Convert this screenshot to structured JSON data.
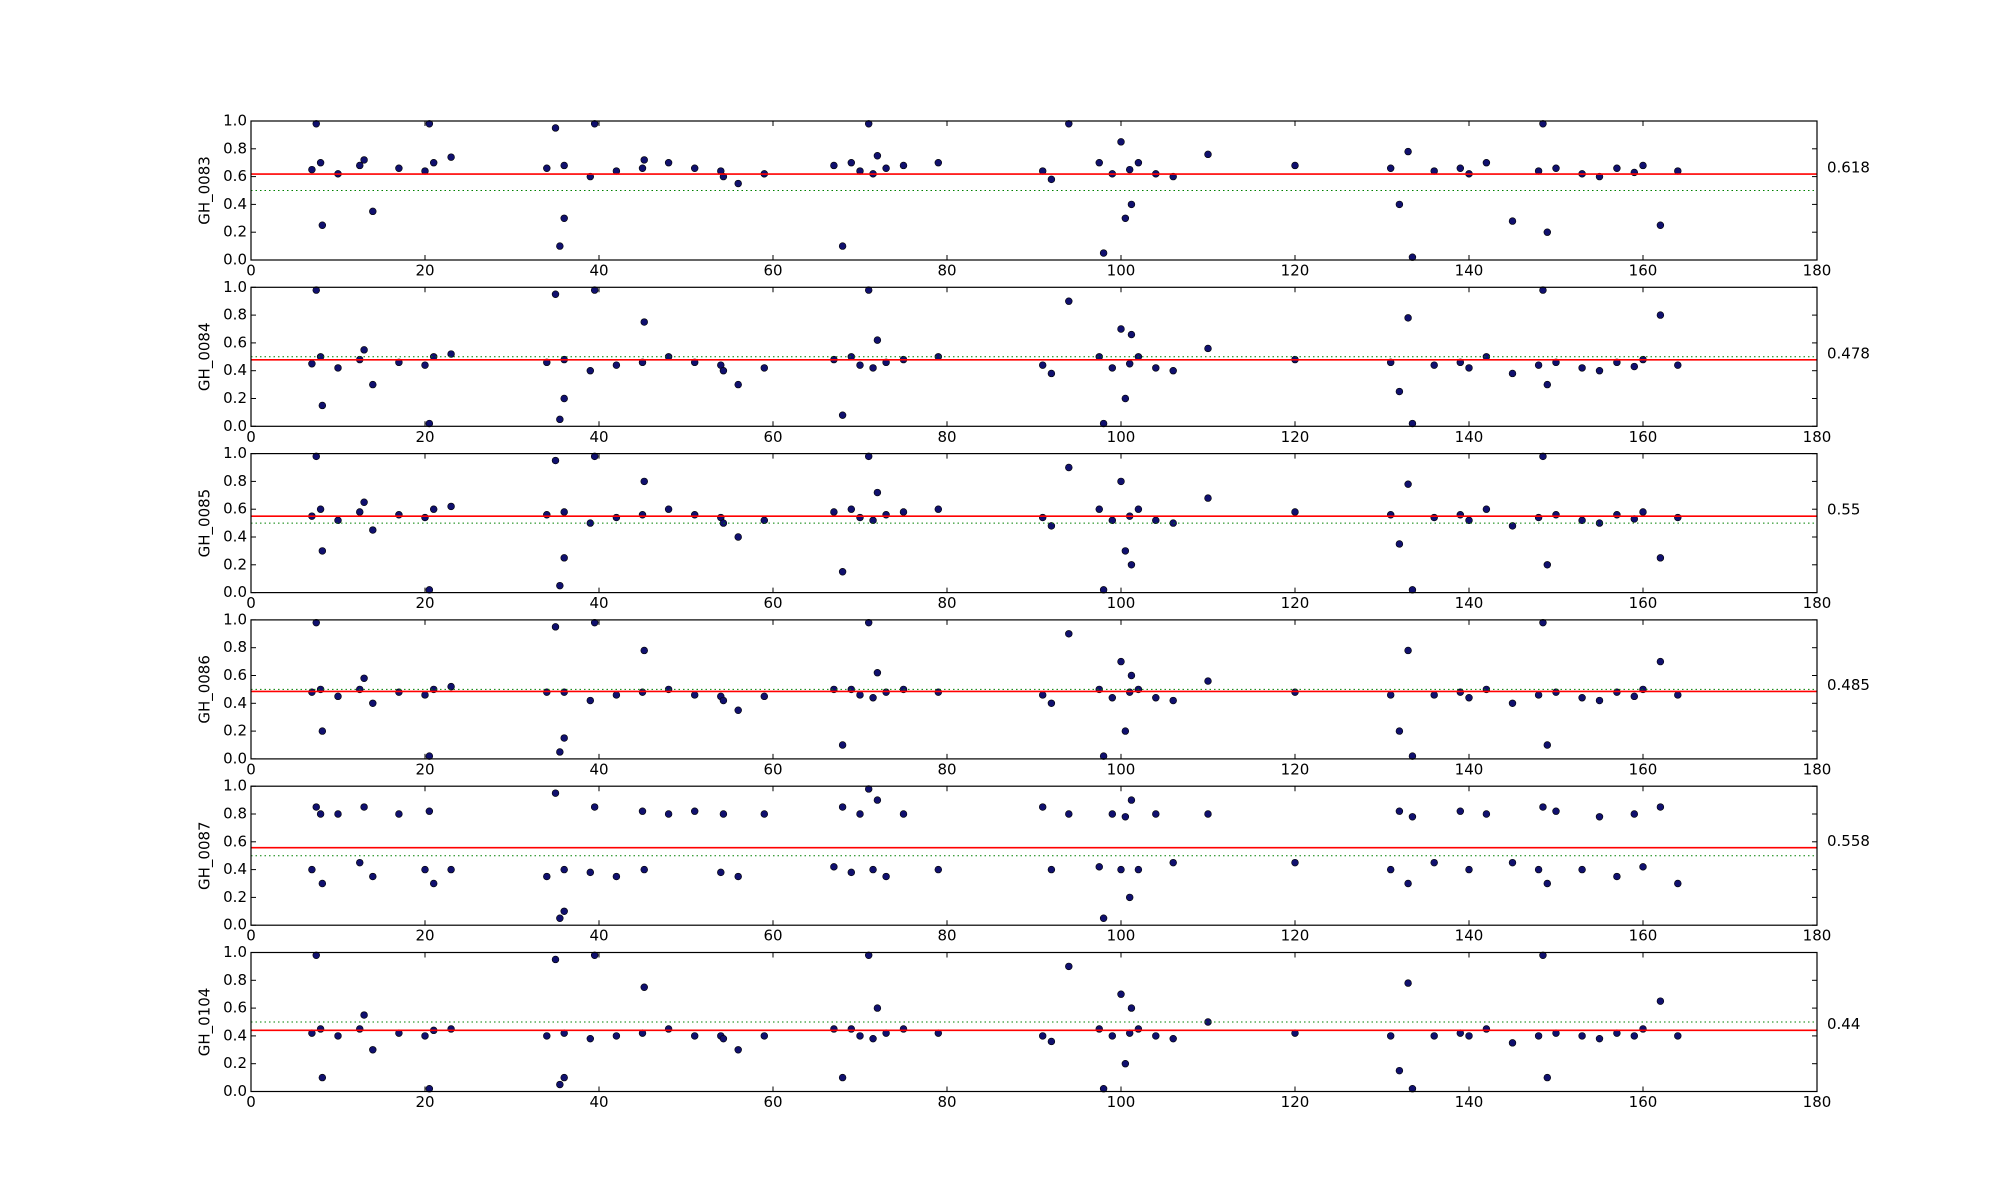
{
  "chart_data": [
    {
      "type": "scatter",
      "ylabel": "GH_0083",
      "color": "#10106e",
      "mean_line": 0.618,
      "mean_color": "#ff0000",
      "reference_line": 0.5,
      "reference_color": "#008000",
      "xlim": [
        0,
        180
      ],
      "ylim": [
        0,
        1
      ],
      "xticks": [
        0,
        20,
        40,
        60,
        80,
        100,
        120,
        140,
        160,
        180
      ],
      "yticks": [
        {
          "value": 0,
          "label": "0.0"
        },
        0.2,
        0.4,
        0.6,
        0.8,
        {
          "value": 1,
          "label": "1.0"
        }
      ],
      "x": [
        7,
        7.5,
        8,
        8.2,
        10,
        12.5,
        13,
        14,
        17,
        20,
        20.5,
        21,
        23,
        34,
        35,
        35.5,
        36,
        36,
        39,
        39.5,
        42,
        45,
        45.2,
        48,
        51,
        54,
        54.3,
        56,
        59,
        67,
        68,
        69,
        70,
        71,
        71.5,
        72,
        73,
        75,
        79,
        91,
        92,
        94,
        97.5,
        98,
        99,
        100,
        100.5,
        101,
        101.2,
        102,
        104,
        106,
        110,
        120,
        131,
        132,
        133,
        133.5,
        136,
        139,
        140,
        142,
        145,
        148,
        148.5,
        149,
        150,
        153,
        155,
        157,
        159,
        160,
        162,
        164
      ],
      "values": [
        0.65,
        0.98,
        0.7,
        0.25,
        0.62,
        0.68,
        0.72,
        0.35,
        0.66,
        0.64,
        0.98,
        0.7,
        0.74,
        0.66,
        0.95,
        0.1,
        0.3,
        0.68,
        0.6,
        0.98,
        0.64,
        0.66,
        0.72,
        0.7,
        0.66,
        0.64,
        0.6,
        0.55,
        0.62,
        0.68,
        0.1,
        0.7,
        0.64,
        0.98,
        0.62,
        0.75,
        0.66,
        0.68,
        0.7,
        0.64,
        0.58,
        0.98,
        0.7,
        0.05,
        0.62,
        0.85,
        0.3,
        0.65,
        0.4,
        0.7,
        0.62,
        0.6,
        0.76,
        0.68,
        0.66,
        0.4,
        0.78,
        0.02,
        0.64,
        0.66,
        0.62,
        0.7,
        0.28,
        0.64,
        0.98,
        0.2,
        0.66,
        0.62,
        0.6,
        0.66,
        0.63,
        0.68,
        0.25,
        0.64
      ]
    },
    {
      "type": "scatter",
      "ylabel": "GH_0084",
      "color": "#10106e",
      "mean_line": 0.478,
      "mean_color": "#ff0000",
      "reference_line": 0.5,
      "reference_color": "#008000",
      "xlim": [
        0,
        180
      ],
      "ylim": [
        0,
        1
      ],
      "xticks": [
        0,
        20,
        40,
        60,
        80,
        100,
        120,
        140,
        160,
        180
      ],
      "yticks": [
        {
          "value": 0,
          "label": "0.0"
        },
        0.2,
        0.4,
        0.6,
        0.8,
        {
          "value": 1,
          "label": "1.0"
        }
      ],
      "x": [
        7,
        7.5,
        8,
        8.2,
        10,
        12.5,
        13,
        14,
        17,
        20,
        20.5,
        21,
        23,
        34,
        35,
        35.5,
        36,
        36,
        39,
        39.5,
        42,
        45,
        45.2,
        48,
        51,
        54,
        54.3,
        56,
        59,
        67,
        68,
        69,
        70,
        71,
        71.5,
        72,
        73,
        75,
        79,
        91,
        92,
        94,
        97.5,
        98,
        99,
        100,
        100.5,
        101,
        101.2,
        102,
        104,
        106,
        110,
        120,
        131,
        132,
        133,
        133.5,
        136,
        139,
        140,
        142,
        145,
        148,
        148.5,
        149,
        150,
        153,
        155,
        157,
        159,
        160,
        162,
        164
      ],
      "values": [
        0.45,
        0.98,
        0.5,
        0.15,
        0.42,
        0.48,
        0.55,
        0.3,
        0.46,
        0.44,
        0.02,
        0.5,
        0.52,
        0.46,
        0.95,
        0.05,
        0.2,
        0.48,
        0.4,
        0.98,
        0.44,
        0.46,
        0.75,
        0.5,
        0.46,
        0.44,
        0.4,
        0.3,
        0.42,
        0.48,
        0.08,
        0.5,
        0.44,
        0.98,
        0.42,
        0.62,
        0.46,
        0.48,
        0.5,
        0.44,
        0.38,
        0.9,
        0.5,
        0.02,
        0.42,
        0.7,
        0.2,
        0.45,
        0.66,
        0.5,
        0.42,
        0.4,
        0.56,
        0.48,
        0.46,
        0.25,
        0.78,
        0.02,
        0.44,
        0.46,
        0.42,
        0.5,
        0.38,
        0.44,
        0.98,
        0.3,
        0.46,
        0.42,
        0.4,
        0.46,
        0.43,
        0.48,
        0.8,
        0.44
      ]
    },
    {
      "type": "scatter",
      "ylabel": "GH_0085",
      "color": "#10106e",
      "mean_line": 0.55,
      "mean_color": "#ff0000",
      "reference_line": 0.5,
      "reference_color": "#008000",
      "xlim": [
        0,
        180
      ],
      "ylim": [
        0,
        1
      ],
      "xticks": [
        0,
        20,
        40,
        60,
        80,
        100,
        120,
        140,
        160,
        180
      ],
      "yticks": [
        {
          "value": 0,
          "label": "0.0"
        },
        0.2,
        0.4,
        0.6,
        0.8,
        {
          "value": 1,
          "label": "1.0"
        }
      ],
      "x": [
        7,
        7.5,
        8,
        8.2,
        10,
        12.5,
        13,
        14,
        17,
        20,
        20.5,
        21,
        23,
        34,
        35,
        35.5,
        36,
        36,
        39,
        39.5,
        42,
        45,
        45.2,
        48,
        51,
        54,
        54.3,
        56,
        59,
        67,
        68,
        69,
        70,
        71,
        71.5,
        72,
        73,
        75,
        79,
        91,
        92,
        94,
        97.5,
        98,
        99,
        100,
        100.5,
        101,
        101.2,
        102,
        104,
        106,
        110,
        120,
        131,
        132,
        133,
        133.5,
        136,
        139,
        140,
        142,
        145,
        148,
        148.5,
        149,
        150,
        153,
        155,
        157,
        159,
        160,
        162,
        164
      ],
      "values": [
        0.55,
        0.98,
        0.6,
        0.3,
        0.52,
        0.58,
        0.65,
        0.45,
        0.56,
        0.54,
        0.02,
        0.6,
        0.62,
        0.56,
        0.95,
        0.05,
        0.25,
        0.58,
        0.5,
        0.98,
        0.54,
        0.56,
        0.8,
        0.6,
        0.56,
        0.54,
        0.5,
        0.4,
        0.52,
        0.58,
        0.15,
        0.6,
        0.54,
        0.98,
        0.52,
        0.72,
        0.56,
        0.58,
        0.6,
        0.54,
        0.48,
        0.9,
        0.6,
        0.02,
        0.52,
        0.8,
        0.3,
        0.55,
        0.2,
        0.6,
        0.52,
        0.5,
        0.68,
        0.58,
        0.56,
        0.35,
        0.78,
        0.02,
        0.54,
        0.56,
        0.52,
        0.6,
        0.48,
        0.54,
        0.98,
        0.2,
        0.56,
        0.52,
        0.5,
        0.56,
        0.53,
        0.58,
        0.25,
        0.54
      ]
    },
    {
      "type": "scatter",
      "ylabel": "GH_0086",
      "color": "#10106e",
      "mean_line": 0.485,
      "mean_color": "#ff0000",
      "reference_line": 0.5,
      "reference_color": "#008000",
      "xlim": [
        0,
        180
      ],
      "ylim": [
        0,
        1
      ],
      "xticks": [
        0,
        20,
        40,
        60,
        80,
        100,
        120,
        140,
        160,
        180
      ],
      "yticks": [
        {
          "value": 0,
          "label": "0.0"
        },
        0.2,
        0.4,
        0.6,
        0.8,
        {
          "value": 1,
          "label": "1.0"
        }
      ],
      "x": [
        7,
        7.5,
        8,
        8.2,
        10,
        12.5,
        13,
        14,
        17,
        20,
        20.5,
        21,
        23,
        34,
        35,
        35.5,
        36,
        36,
        39,
        39.5,
        42,
        45,
        45.2,
        48,
        51,
        54,
        54.3,
        56,
        59,
        67,
        68,
        69,
        70,
        71,
        71.5,
        72,
        73,
        75,
        79,
        91,
        92,
        94,
        97.5,
        98,
        99,
        100,
        100.5,
        101,
        101.2,
        102,
        104,
        106,
        110,
        120,
        131,
        132,
        133,
        133.5,
        136,
        139,
        140,
        142,
        145,
        148,
        148.5,
        149,
        150,
        153,
        155,
        157,
        159,
        160,
        162,
        164
      ],
      "values": [
        0.48,
        0.98,
        0.5,
        0.2,
        0.45,
        0.5,
        0.58,
        0.4,
        0.48,
        0.46,
        0.02,
        0.5,
        0.52,
        0.48,
        0.95,
        0.05,
        0.15,
        0.48,
        0.42,
        0.98,
        0.46,
        0.48,
        0.78,
        0.5,
        0.46,
        0.45,
        0.42,
        0.35,
        0.45,
        0.5,
        0.1,
        0.5,
        0.46,
        0.98,
        0.44,
        0.62,
        0.48,
        0.5,
        0.48,
        0.46,
        0.4,
        0.9,
        0.5,
        0.02,
        0.44,
        0.7,
        0.2,
        0.48,
        0.6,
        0.5,
        0.44,
        0.42,
        0.56,
        0.48,
        0.46,
        0.2,
        0.78,
        0.02,
        0.46,
        0.48,
        0.44,
        0.5,
        0.4,
        0.46,
        0.98,
        0.1,
        0.48,
        0.44,
        0.42,
        0.48,
        0.45,
        0.5,
        0.7,
        0.46
      ]
    },
    {
      "type": "scatter",
      "ylabel": "GH_0087",
      "color": "#10106e",
      "mean_line": 0.558,
      "mean_color": "#ff0000",
      "reference_line": 0.5,
      "reference_color": "#008000",
      "xlim": [
        0,
        180
      ],
      "ylim": [
        0,
        1
      ],
      "xticks": [
        0,
        20,
        40,
        60,
        80,
        100,
        120,
        140,
        160,
        180
      ],
      "yticks": [
        {
          "value": 0,
          "label": "0.0"
        },
        0.2,
        0.4,
        0.6,
        0.8,
        {
          "value": 1,
          "label": "1.0"
        }
      ],
      "x": [
        7,
        7.5,
        8,
        8.2,
        10,
        12.5,
        13,
        14,
        17,
        20,
        20.5,
        21,
        23,
        34,
        35,
        35.5,
        36,
        36,
        39,
        39.5,
        42,
        45,
        45.2,
        48,
        51,
        54,
        54.3,
        56,
        59,
        67,
        68,
        69,
        70,
        71,
        71.5,
        72,
        73,
        75,
        79,
        91,
        92,
        94,
        97.5,
        98,
        99,
        100,
        100.5,
        101,
        101.2,
        102,
        104,
        106,
        110,
        120,
        131,
        132,
        133,
        133.5,
        136,
        139,
        140,
        142,
        145,
        148,
        148.5,
        149,
        150,
        153,
        155,
        157,
        159,
        160,
        162,
        164
      ],
      "values": [
        0.4,
        0.85,
        0.8,
        0.3,
        0.8,
        0.45,
        0.85,
        0.35,
        0.8,
        0.4,
        0.82,
        0.3,
        0.4,
        0.35,
        0.95,
        0.05,
        0.4,
        0.1,
        0.38,
        0.85,
        0.35,
        0.82,
        0.4,
        0.8,
        0.82,
        0.38,
        0.8,
        0.35,
        0.8,
        0.42,
        0.85,
        0.38,
        0.8,
        0.98,
        0.4,
        0.9,
        0.35,
        0.8,
        0.4,
        0.85,
        0.4,
        0.8,
        0.42,
        0.05,
        0.8,
        0.4,
        0.78,
        0.2,
        0.9,
        0.4,
        0.8,
        0.45,
        0.8,
        0.45,
        0.4,
        0.82,
        0.3,
        0.78,
        0.45,
        0.82,
        0.4,
        0.8,
        0.45,
        0.4,
        0.85,
        0.3,
        0.82,
        0.4,
        0.78,
        0.35,
        0.8,
        0.42,
        0.85,
        0.3
      ]
    },
    {
      "type": "scatter",
      "ylabel": "GH_0104",
      "color": "#10106e",
      "mean_line": 0.44,
      "mean_color": "#ff0000",
      "reference_line": 0.5,
      "reference_color": "#008000",
      "xlim": [
        0,
        180
      ],
      "ylim": [
        0,
        1
      ],
      "xticks": [
        0,
        20,
        40,
        60,
        80,
        100,
        120,
        140,
        160,
        180
      ],
      "yticks": [
        {
          "value": 0,
          "label": "0.0"
        },
        0.2,
        0.4,
        0.6,
        0.8,
        {
          "value": 1,
          "label": "1.0"
        }
      ],
      "x": [
        7,
        7.5,
        8,
        8.2,
        10,
        12.5,
        13,
        14,
        17,
        20,
        20.5,
        21,
        23,
        34,
        35,
        35.5,
        36,
        36,
        39,
        39.5,
        42,
        45,
        45.2,
        48,
        51,
        54,
        54.3,
        56,
        59,
        67,
        68,
        69,
        70,
        71,
        71.5,
        72,
        73,
        75,
        79,
        91,
        92,
        94,
        97.5,
        98,
        99,
        100,
        100.5,
        101,
        101.2,
        102,
        104,
        106,
        110,
        120,
        131,
        132,
        133,
        133.5,
        136,
        139,
        140,
        142,
        145,
        148,
        148.5,
        149,
        150,
        153,
        155,
        157,
        159,
        160,
        162,
        164
      ],
      "values": [
        0.42,
        0.98,
        0.45,
        0.1,
        0.4,
        0.45,
        0.55,
        0.3,
        0.42,
        0.4,
        0.02,
        0.44,
        0.45,
        0.4,
        0.95,
        0.05,
        0.1,
        0.42,
        0.38,
        0.98,
        0.4,
        0.42,
        0.75,
        0.45,
        0.4,
        0.4,
        0.38,
        0.3,
        0.4,
        0.45,
        0.1,
        0.45,
        0.4,
        0.98,
        0.38,
        0.6,
        0.42,
        0.45,
        0.42,
        0.4,
        0.36,
        0.9,
        0.45,
        0.02,
        0.4,
        0.7,
        0.2,
        0.42,
        0.6,
        0.45,
        0.4,
        0.38,
        0.5,
        0.42,
        0.4,
        0.15,
        0.78,
        0.02,
        0.4,
        0.42,
        0.4,
        0.45,
        0.35,
        0.4,
        0.98,
        0.1,
        0.42,
        0.4,
        0.38,
        0.42,
        0.4,
        0.45,
        0.65,
        0.4
      ]
    }
  ]
}
